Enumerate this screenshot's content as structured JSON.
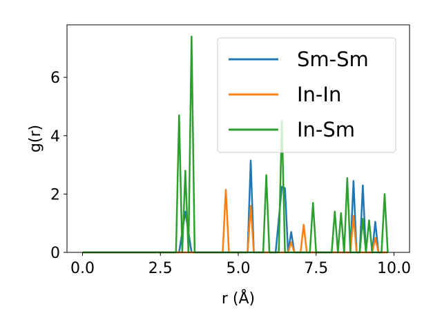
{
  "chart_data": {
    "type": "line",
    "xlabel": "r (Å)",
    "ylabel": "g(r)",
    "xlim": [
      -0.5,
      10.5
    ],
    "ylim": [
      0,
      7.8
    ],
    "xticks": [
      "0.0",
      "2.5",
      "5.0",
      "7.5",
      "10.0"
    ],
    "xtick_values": [
      0,
      2.5,
      5.0,
      7.5,
      10.0
    ],
    "yticks": [
      "0",
      "2",
      "4",
      "6"
    ],
    "ytick_values": [
      0,
      2,
      4,
      6
    ],
    "grid": false,
    "legend_position": "top-right",
    "series": [
      {
        "name": "Sm-Sm",
        "color": "#1f77b4",
        "points": [
          [
            0,
            0
          ],
          [
            3.1,
            0
          ],
          [
            3.3,
            1.4
          ],
          [
            3.5,
            0
          ],
          [
            5.3,
            0
          ],
          [
            5.4,
            3.15
          ],
          [
            5.5,
            0
          ],
          [
            6.2,
            0
          ],
          [
            6.4,
            2.25
          ],
          [
            6.5,
            2.2
          ],
          [
            6.6,
            0
          ],
          [
            6.7,
            0.7
          ],
          [
            6.8,
            0
          ],
          [
            8.6,
            0
          ],
          [
            8.7,
            2.45
          ],
          [
            8.8,
            0
          ],
          [
            8.9,
            0
          ],
          [
            9.0,
            2.3
          ],
          [
            9.1,
            0
          ],
          [
            9.3,
            0
          ],
          [
            9.4,
            1.05
          ],
          [
            9.5,
            0
          ],
          [
            9.8,
            0
          ]
        ]
      },
      {
        "name": "In-In",
        "color": "#ff7f0e",
        "points": [
          [
            0,
            0
          ],
          [
            4.5,
            0
          ],
          [
            4.6,
            2.15
          ],
          [
            4.7,
            0
          ],
          [
            5.3,
            0
          ],
          [
            5.4,
            1.6
          ],
          [
            5.5,
            0
          ],
          [
            6.6,
            0
          ],
          [
            6.7,
            0.35
          ],
          [
            6.8,
            0
          ],
          [
            7.0,
            0
          ],
          [
            7.1,
            0.95
          ],
          [
            7.2,
            0
          ],
          [
            8.6,
            0
          ],
          [
            8.7,
            1.25
          ],
          [
            8.8,
            0
          ],
          [
            9.3,
            0
          ],
          [
            9.4,
            0.5
          ],
          [
            9.5,
            0
          ],
          [
            9.8,
            0
          ]
        ]
      },
      {
        "name": "In-Sm",
        "color": "#2ca02c",
        "points": [
          [
            0,
            0
          ],
          [
            3.0,
            0
          ],
          [
            3.1,
            4.7
          ],
          [
            3.2,
            0
          ],
          [
            3.3,
            2.8
          ],
          [
            3.4,
            0
          ],
          [
            3.5,
            7.4
          ],
          [
            3.6,
            0
          ],
          [
            5.8,
            0
          ],
          [
            5.9,
            2.65
          ],
          [
            6.0,
            0
          ],
          [
            6.3,
            0
          ],
          [
            6.4,
            4.5
          ],
          [
            6.5,
            0
          ],
          [
            7.3,
            0
          ],
          [
            7.4,
            1.7
          ],
          [
            7.5,
            0
          ],
          [
            8.0,
            0
          ],
          [
            8.1,
            1.4
          ],
          [
            8.2,
            0
          ],
          [
            8.3,
            1.35
          ],
          [
            8.4,
            0
          ],
          [
            8.5,
            2.55
          ],
          [
            8.6,
            0
          ],
          [
            8.9,
            0
          ],
          [
            9.0,
            1.15
          ],
          [
            9.1,
            0
          ],
          [
            9.2,
            1.1
          ],
          [
            9.3,
            0
          ],
          [
            9.6,
            0
          ],
          [
            9.7,
            2.0
          ],
          [
            9.8,
            0
          ]
        ]
      }
    ]
  }
}
